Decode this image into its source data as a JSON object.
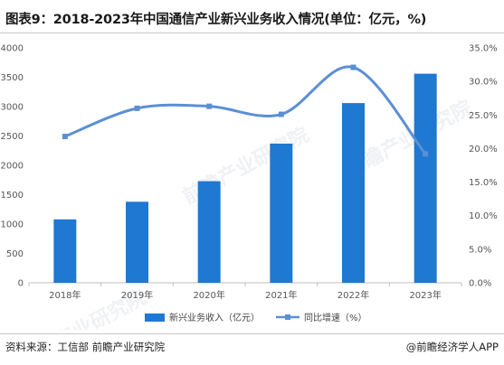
{
  "title": "图表9：2018-2023年中国通信产业新兴业务收入情况(单位：亿元，%)",
  "source": "资料来源：工信部 前瞻产业研究院",
  "brand": "@前瞻经济学人APP",
  "watermark": "前瞻产业研究院",
  "colors": {
    "bar": "#1f78d1",
    "line": "#5b8fd6"
  },
  "chart_data": {
    "type": "bar",
    "categories": [
      "2018年",
      "2019年",
      "2020年",
      "2021年",
      "2022年",
      "2023年"
    ],
    "series": [
      {
        "name": "新兴业务收入（亿元）",
        "type": "bar",
        "axis": "left",
        "values": [
          1080,
          1380,
          1730,
          2370,
          3060,
          3560
        ]
      },
      {
        "name": "同比增速（%）",
        "type": "line",
        "axis": "right",
        "smooth": true,
        "values": [
          21.8,
          26.0,
          26.3,
          25.1,
          32.1,
          19.2
        ]
      }
    ],
    "y_left": {
      "min": 0,
      "max": 4000,
      "step": 500,
      "ticks": [
        "0",
        "500",
        "1000",
        "1500",
        "2000",
        "2500",
        "3000",
        "3500",
        "4000"
      ]
    },
    "y_right": {
      "min": 0,
      "max": 35,
      "step": 5,
      "ticks": [
        "0.0%",
        "5.0%",
        "10.0%",
        "15.0%",
        "20.0%",
        "25.0%",
        "30.0%",
        "35.0%"
      ]
    },
    "legend_position": "bottom",
    "grid": false
  }
}
